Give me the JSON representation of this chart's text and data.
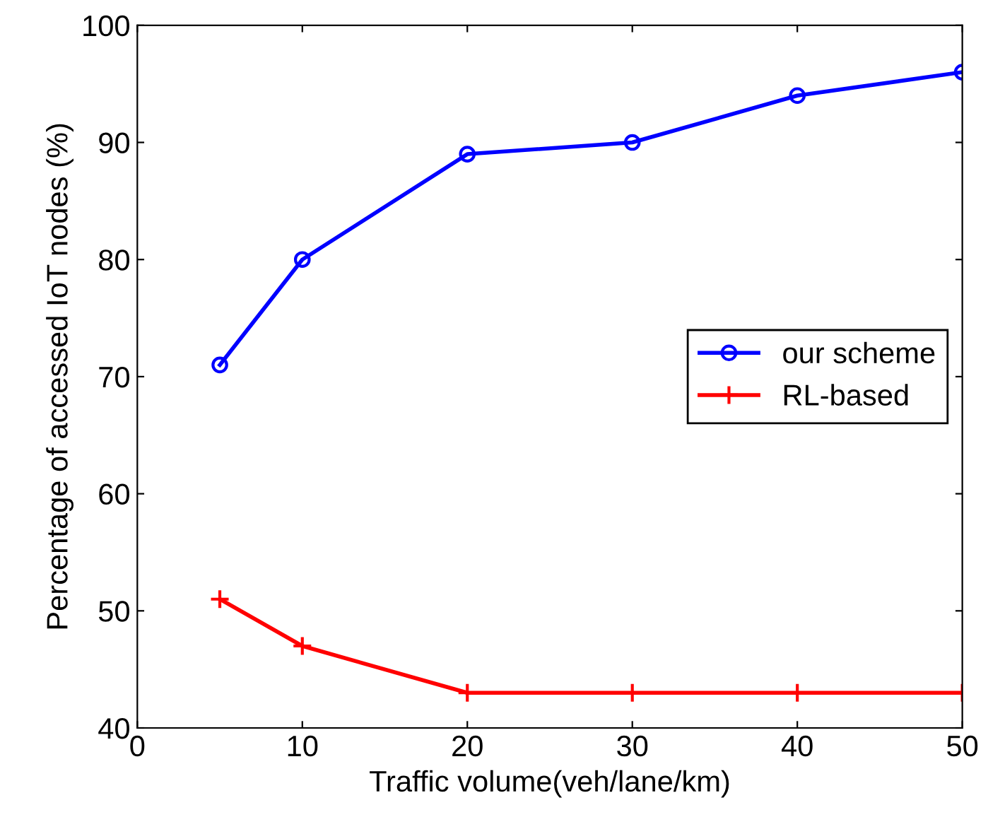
{
  "chart_data": {
    "type": "line",
    "xlabel": "Traffic volume(veh/lane/km)",
    "ylabel": "Percentage of accessed IoT nodes (%)",
    "x": [
      5,
      10,
      20,
      30,
      40,
      50
    ],
    "series": [
      {
        "name": "our scheme",
        "color": "#0000ff",
        "marker": "circle",
        "values": [
          71,
          80,
          89,
          90,
          94,
          96
        ]
      },
      {
        "name": "RL-based",
        "color": "#ff0000",
        "marker": "cross",
        "values": [
          51,
          47,
          43,
          43,
          43,
          43
        ]
      }
    ],
    "xlim": [
      0,
      50
    ],
    "xticks": [
      0,
      10,
      20,
      30,
      40,
      50
    ],
    "ylim": [
      40,
      100
    ],
    "yticks": [
      40,
      50,
      60,
      70,
      80,
      90,
      100
    ],
    "grid": false,
    "legend": "right",
    "line_style": "solid"
  }
}
